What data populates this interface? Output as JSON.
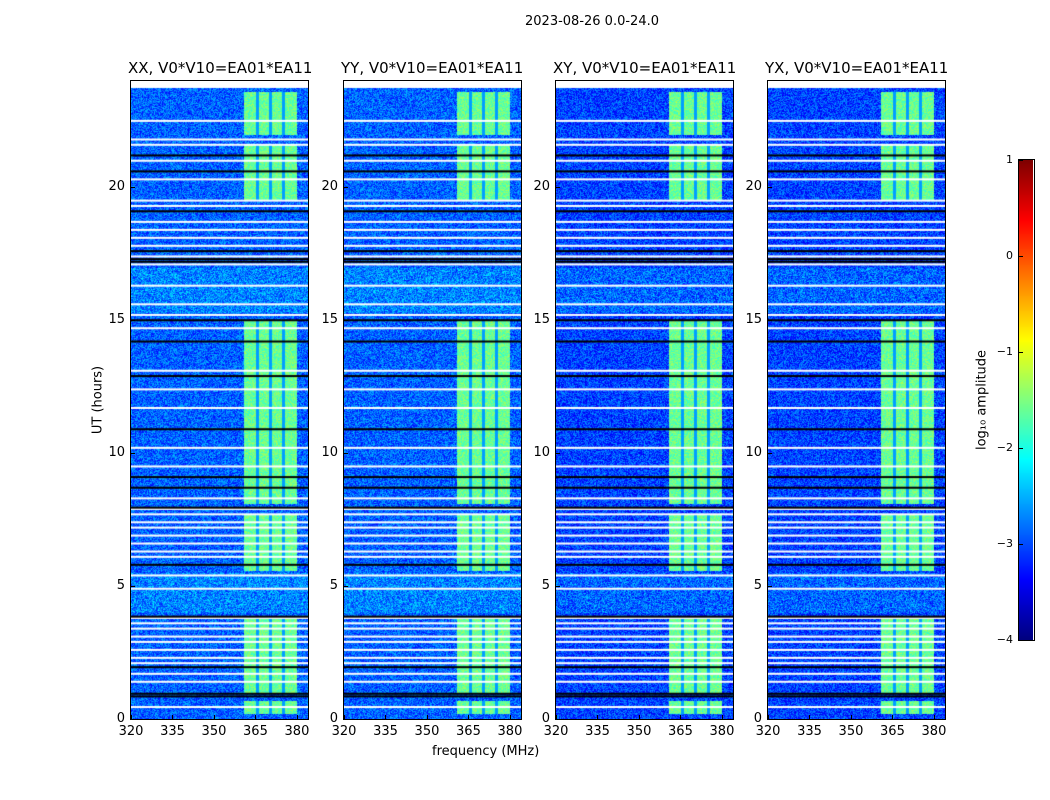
{
  "chart_data": {
    "type": "heatmap",
    "title": "2023-08-26 0.0-24.0",
    "xlabel": "frequency (MHz)",
    "ylabel": "UT (hours)",
    "xlim": [
      320,
      384
    ],
    "ylim": [
      0,
      24
    ],
    "xticks": [
      "320",
      "335",
      "350",
      "365",
      "380"
    ],
    "yticks": [
      "0",
      "5",
      "10",
      "15",
      "20"
    ],
    "panels": [
      {
        "title": "XX, V0*V10=EA01*EA11"
      },
      {
        "title": "YY, V0*V10=EA01*EA11"
      },
      {
        "title": "XY, V0*V10=EA01*EA11"
      },
      {
        "title": "YX, V0*V10=EA01*EA11"
      }
    ],
    "colorbar": {
      "label": "log₁₀ amplitude",
      "range": [
        -4,
        1
      ],
      "ticks": [
        "1",
        "0",
        "−1",
        "−2",
        "−3",
        "−4"
      ],
      "colormap": "jet"
    },
    "background_level": -2.9,
    "bright_band_mhz": [
      360.5,
      380
    ],
    "bright_band_gaps_mhz": [
      365.5,
      370.2,
      375
    ],
    "bright_band_level": -1.6,
    "bright_band_hours": [
      [
        0.2,
        0.7
      ],
      [
        1.0,
        3.9
      ],
      [
        5.6,
        7.7
      ],
      [
        8.1,
        15.0
      ],
      [
        19.5,
        21.6
      ],
      [
        22.0,
        23.6
      ]
    ],
    "flagged_white_hours": [
      0.45,
      1.4,
      1.7,
      2.1,
      2.3,
      2.6,
      2.9,
      3.1,
      3.4,
      3.6,
      3.8,
      4.9,
      5.4,
      6.1,
      6.3,
      6.6,
      6.9,
      7.2,
      7.4,
      7.7,
      7.9,
      8.3,
      9.5,
      10.2,
      11.7,
      12.4,
      13.1,
      14.7,
      15.2,
      15.6,
      16.3,
      17.1,
      17.4,
      17.8,
      18.1,
      18.4,
      18.7,
      19.3,
      19.5,
      20.3,
      21.0,
      21.6,
      21.8,
      22.5
    ],
    "flagged_black_hours": [
      0.85,
      0.95,
      1.95,
      3.85,
      5.8,
      7.95,
      8.7,
      9.1,
      10.9,
      12.9,
      14.2,
      15.0,
      17.2,
      17.3,
      17.6,
      19.1,
      20.6,
      21.2
    ]
  }
}
